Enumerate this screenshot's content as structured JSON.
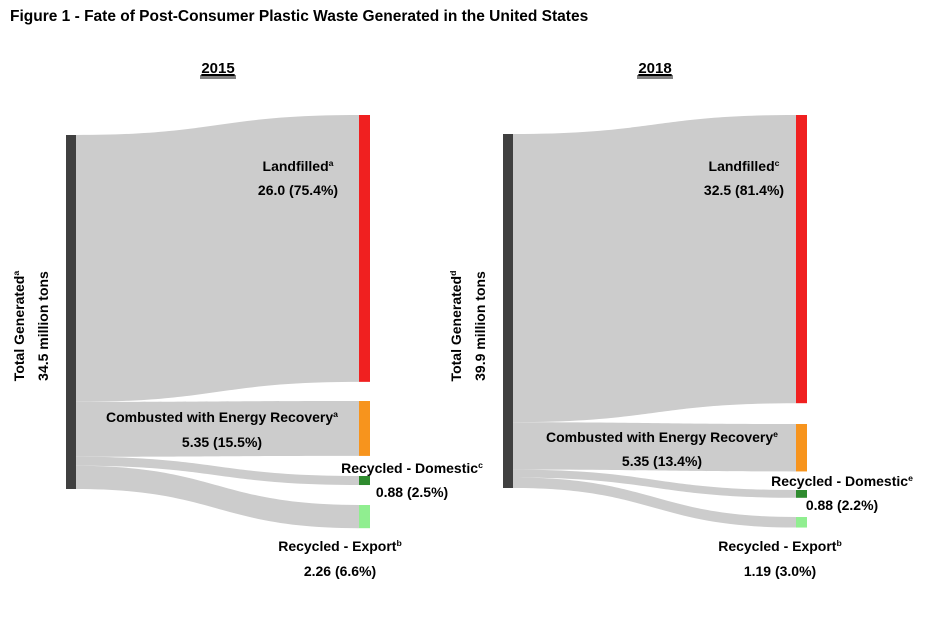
{
  "figure_title": "Figure 1 - Fate of Post-Consumer Plastic Waste Generated in the United States",
  "chart_data": [
    {
      "type": "sankey",
      "title": "2015",
      "source": {
        "label": "Total Generated",
        "superscript": "a",
        "value_label": "34.5 million tons",
        "value": 34.5,
        "color": "#404040"
      },
      "flows": [
        {
          "name": "Landfilled",
          "superscript": "a",
          "value": 26.0,
          "percent": 75.4,
          "value_label": "26.0 (75.4%)",
          "color": "#f02020"
        },
        {
          "name": "Combusted with Energy Recovery",
          "superscript": "a",
          "value": 5.35,
          "percent": 15.5,
          "value_label": "5.35 (15.5%)",
          "color": "#f7941d"
        },
        {
          "name": "Recycled - Domestic",
          "superscript": "c",
          "value": 0.88,
          "percent": 2.5,
          "value_label": "0.88 (2.5%)",
          "color": "#2e8b2e"
        },
        {
          "name": "Recycled - Export",
          "superscript": "b",
          "value": 2.26,
          "percent": 6.6,
          "value_label": "2.26 (6.6%)",
          "color": "#90ee90"
        }
      ],
      "flow_color": "#cccccc"
    },
    {
      "type": "sankey",
      "title": "2018",
      "source": {
        "label": "Total Generated",
        "superscript": "d",
        "value_label": "39.9 million tons",
        "value": 39.9,
        "color": "#404040"
      },
      "flows": [
        {
          "name": "Landfilled",
          "superscript": "c",
          "value": 32.5,
          "percent": 81.4,
          "value_label": "32.5 (81.4%)",
          "color": "#f02020"
        },
        {
          "name": "Combusted with Energy Recovery",
          "superscript": "e",
          "value": 5.35,
          "percent": 13.4,
          "value_label": "5.35 (13.4%)",
          "color": "#f7941d"
        },
        {
          "name": "Recycled - Domestic",
          "superscript": "e",
          "value": 0.88,
          "percent": 2.2,
          "value_label": "0.88 (2.2%)",
          "color": "#2e8b2e"
        },
        {
          "name": "Recycled - Export",
          "superscript": "b",
          "value": 1.19,
          "percent": 3.0,
          "value_label": "1.19 (3.0%)",
          "color": "#90ee90"
        }
      ],
      "flow_color": "#cccccc"
    }
  ]
}
